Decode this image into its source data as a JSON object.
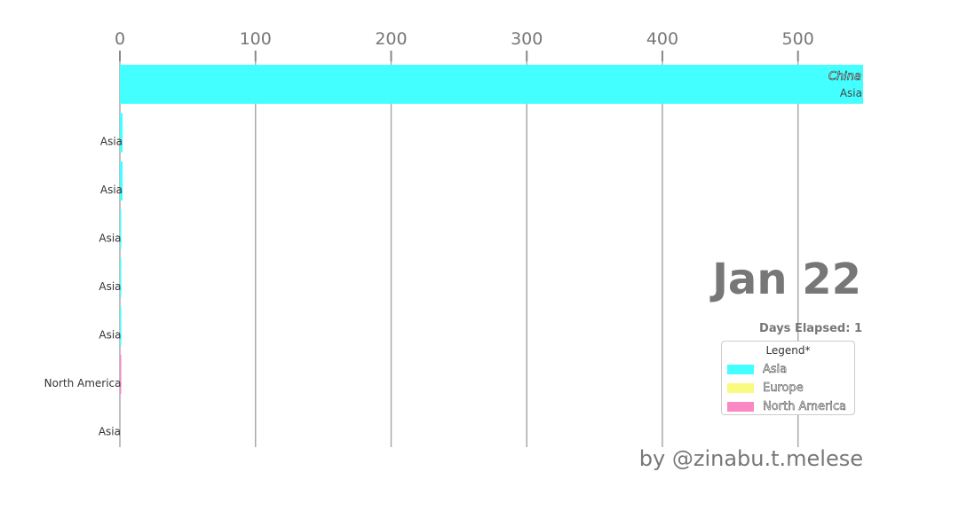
{
  "chart_data": {
    "type": "bar",
    "orientation": "horizontal",
    "x_ticks": [
      0,
      100,
      200,
      300,
      400,
      500
    ],
    "xlim": [
      0,
      548
    ],
    "grid": true,
    "bars": [
      {
        "name": "China",
        "group": "Asia",
        "value": 548
      },
      {
        "name": "",
        "group": "Asia",
        "value": 2
      },
      {
        "name": "",
        "group": "Asia",
        "value": 2
      },
      {
        "name": "",
        "group": "Asia",
        "value": 1
      },
      {
        "name": "",
        "group": "Asia",
        "value": 1
      },
      {
        "name": "",
        "group": "Asia",
        "value": 1
      },
      {
        "name": "",
        "group": "North America",
        "value": 1
      },
      {
        "name": "",
        "group": "Asia",
        "value": 0
      }
    ],
    "group_colors": {
      "Asia": "#44ffff",
      "Europe": "#fafa80",
      "North America": "#fa88c4"
    },
    "date": "Jan 22",
    "days_elapsed": "Days Elapsed: 1",
    "legend": {
      "title": "Legend*",
      "placement": "right",
      "items": [
        "Asia",
        "Europe",
        "North America"
      ]
    }
  },
  "credit": "by @zinabu.t.melese"
}
